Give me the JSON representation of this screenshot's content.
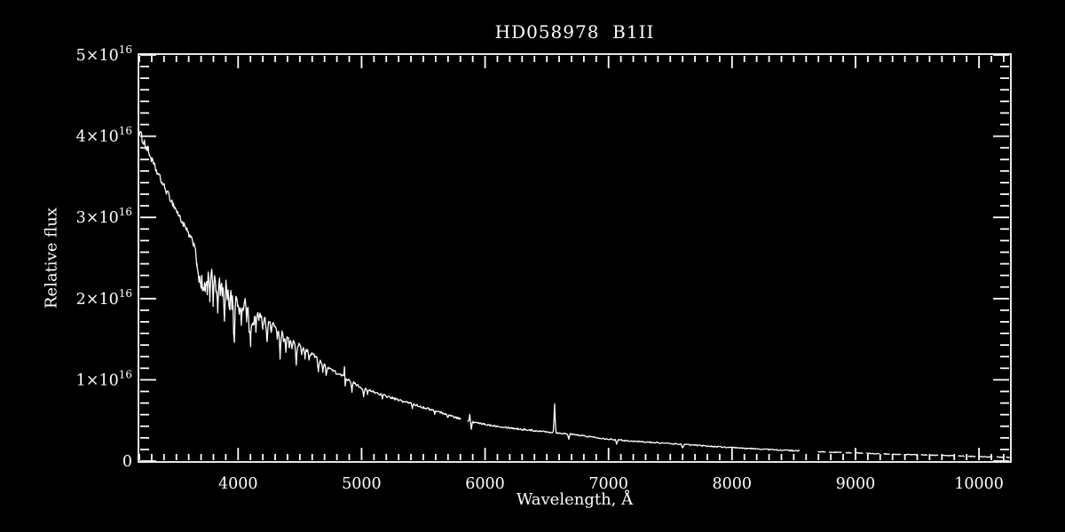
{
  "figure": {
    "background": "#000000",
    "foreground": "#ffffff"
  },
  "chart_data": {
    "type": "line",
    "title": "HD058978  B1II",
    "xlabel": "Wavelength, Å",
    "ylabel": "Relative flux",
    "legend": null,
    "grid": false,
    "line_color": "#ffffff",
    "xlim": [
      3200,
      10251
    ],
    "ylim_e16": [
      0,
      5
    ],
    "x_major_ticks": [
      4000,
      5000,
      6000,
      7000,
      8000,
      9000,
      10000
    ],
    "x_tick_labels": [
      "4000",
      "5000",
      "6000",
      "7000",
      "8000",
      "9000",
      "10000"
    ],
    "x_minor_step": 100,
    "y_major_ticks": [
      {
        "v": 0,
        "text": "0"
      },
      {
        "v": 1,
        "base": "1×10",
        "exp": "16"
      },
      {
        "v": 2,
        "base": "2×10",
        "exp": "16"
      },
      {
        "v": 3,
        "base": "3×10",
        "exp": "16"
      },
      {
        "v": 4,
        "base": "4×10",
        "exp": "16"
      },
      {
        "v": 5,
        "base": "5×10",
        "exp": "16"
      }
    ],
    "y_minor_divisions": 7,
    "continuum_e16": [
      [
        3200,
        4.05
      ],
      [
        3240,
        3.92
      ],
      [
        3270,
        3.82
      ],
      [
        3330,
        3.6
      ],
      [
        3400,
        3.38
      ],
      [
        3475,
        3.16
      ],
      [
        3545,
        2.95
      ],
      [
        3620,
        2.73
      ],
      [
        3690,
        2.55
      ],
      [
        3740,
        2.48
      ],
      [
        3810,
        2.42
      ],
      [
        3905,
        2.24
      ],
      [
        4000,
        2.07
      ],
      [
        4100,
        1.92
      ],
      [
        4200,
        1.79
      ],
      [
        4300,
        1.66
      ],
      [
        4400,
        1.53
      ],
      [
        4500,
        1.42
      ],
      [
        4600,
        1.32
      ],
      [
        4700,
        1.19
      ],
      [
        4800,
        1.08
      ],
      [
        4900,
        1.0
      ],
      [
        5000,
        0.9
      ],
      [
        5100,
        0.85
      ],
      [
        5200,
        0.8
      ],
      [
        5300,
        0.75
      ],
      [
        5400,
        0.71
      ],
      [
        5500,
        0.66
      ],
      [
        5600,
        0.62
      ],
      [
        5700,
        0.57
      ],
      [
        5800,
        0.52
      ],
      [
        5900,
        0.48
      ],
      [
        6000,
        0.45
      ],
      [
        6100,
        0.43
      ],
      [
        6200,
        0.41
      ],
      [
        6300,
        0.39
      ],
      [
        6400,
        0.375
      ],
      [
        6500,
        0.36
      ],
      [
        6600,
        0.345
      ],
      [
        6700,
        0.33
      ],
      [
        6800,
        0.31
      ],
      [
        6900,
        0.29
      ],
      [
        7000,
        0.27
      ],
      [
        7200,
        0.245
      ],
      [
        7400,
        0.225
      ],
      [
        7600,
        0.205
      ],
      [
        7800,
        0.185
      ],
      [
        8000,
        0.165
      ],
      [
        8200,
        0.15
      ],
      [
        8400,
        0.135
      ],
      [
        8550,
        0.125
      ],
      [
        8700,
        0.115
      ],
      [
        8900,
        0.105
      ],
      [
        9100,
        0.095
      ],
      [
        9300,
        0.085
      ],
      [
        9500,
        0.078
      ],
      [
        9700,
        0.07
      ],
      [
        9900,
        0.06
      ],
      [
        10100,
        0.05
      ],
      [
        10251,
        0.045
      ]
    ],
    "absorption_lines": [
      [
        3665,
        0.2,
        7
      ],
      [
        3674,
        0.24,
        7
      ],
      [
        3683,
        0.27,
        7
      ],
      [
        3692,
        0.3,
        7
      ],
      [
        3700,
        0.33,
        7
      ],
      [
        3712,
        0.36,
        8
      ],
      [
        3722,
        0.38,
        8
      ],
      [
        3734,
        0.4,
        8
      ],
      [
        3750,
        0.44,
        9
      ],
      [
        3771,
        0.47,
        9
      ],
      [
        3798,
        0.5,
        9
      ],
      [
        3820,
        0.34,
        8
      ],
      [
        3835,
        0.55,
        9
      ],
      [
        3856,
        0.3,
        8
      ],
      [
        3871,
        0.26,
        7
      ],
      [
        3889,
        0.57,
        9
      ],
      [
        3912,
        0.22,
        7
      ],
      [
        3926,
        0.28,
        7
      ],
      [
        3933,
        0.22,
        7
      ],
      [
        3949,
        0.25,
        7
      ],
      [
        3964,
        0.28,
        7
      ],
      [
        3970,
        0.58,
        9
      ],
      [
        3995,
        0.2,
        7
      ],
      [
        4009,
        0.24,
        7
      ],
      [
        4026,
        0.36,
        8
      ],
      [
        4041,
        0.18,
        7
      ],
      [
        4069,
        0.26,
        7
      ],
      [
        4089,
        0.28,
        7
      ],
      [
        4101,
        0.47,
        9
      ],
      [
        4116,
        0.24,
        7
      ],
      [
        4128,
        0.22,
        7
      ],
      [
        4144,
        0.26,
        7
      ],
      [
        4168,
        0.14,
        7
      ],
      [
        4200,
        0.16,
        7
      ],
      [
        4233,
        0.3,
        8
      ],
      [
        4267,
        0.13,
        7
      ],
      [
        4317,
        0.12,
        7
      ],
      [
        4340,
        0.33,
        9
      ],
      [
        4368,
        0.12,
        7
      ],
      [
        4387,
        0.22,
        7
      ],
      [
        4415,
        0.12,
        7
      ],
      [
        4437,
        0.1,
        7
      ],
      [
        4471,
        0.28,
        8
      ],
      [
        4515,
        0.09,
        7
      ],
      [
        4542,
        0.1,
        7
      ],
      [
        4575,
        0.11,
        7
      ],
      [
        4650,
        0.16,
        8
      ],
      [
        4686,
        0.1,
        7
      ],
      [
        4713,
        0.13,
        7
      ],
      [
        4867,
        0.12,
        5
      ],
      [
        4922,
        0.12,
        7
      ],
      [
        5016,
        0.09,
        7
      ],
      [
        5048,
        0.05,
        6
      ],
      [
        5169,
        0.05,
        6
      ],
      [
        5411,
        0.05,
        6
      ],
      [
        5592,
        0.05,
        6
      ],
      [
        5696,
        0.04,
        6
      ],
      [
        5889,
        0.1,
        6
      ],
      [
        6678,
        0.06,
        7
      ],
      [
        7065,
        0.045,
        7
      ],
      [
        7600,
        0.04,
        9
      ]
    ],
    "emission_lines": [
      [
        4861,
        0.15,
        5
      ],
      [
        5876,
        0.08,
        5
      ],
      [
        6563,
        0.36,
        7
      ]
    ],
    "gaps": [
      [
        5809,
        5856
      ],
      [
        8552,
        8696
      ]
    ],
    "dashed_tail_from": 8696,
    "noise_regions": [
      [
        3200,
        3280,
        0.055
      ],
      [
        3280,
        3650,
        0.04
      ],
      [
        3650,
        4250,
        0.045
      ],
      [
        4250,
        4600,
        0.026
      ],
      [
        4600,
        4900,
        0.02
      ],
      [
        4900,
        5400,
        0.015
      ],
      [
        5400,
        5809,
        0.012
      ],
      [
        5856,
        6400,
        0.011
      ],
      [
        6400,
        7200,
        0.008
      ],
      [
        7200,
        8552,
        0.007
      ],
      [
        8696,
        10251,
        0.005
      ]
    ]
  }
}
